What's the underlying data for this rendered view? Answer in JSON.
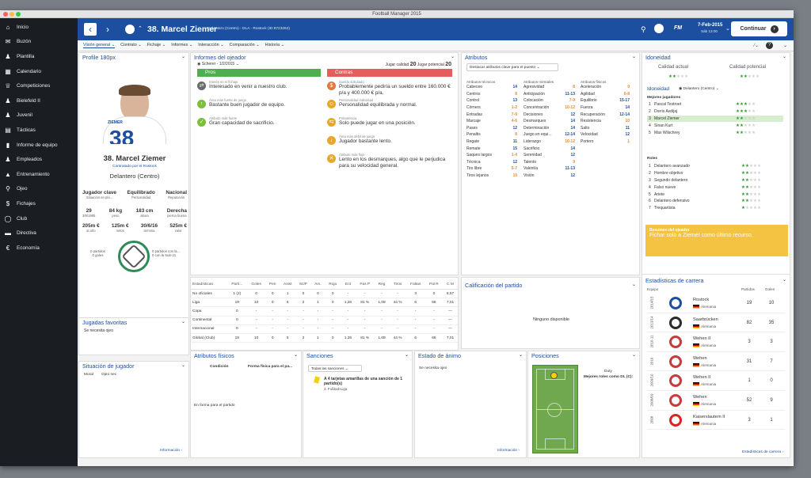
{
  "window_title": "Football Manager 2015",
  "sidebar": [
    {
      "label": "Inicio",
      "icon": "home-icon",
      "g": "⌂"
    },
    {
      "label": "Buzón",
      "icon": "inbox-icon",
      "g": "✉"
    },
    {
      "label": "Plantilla",
      "icon": "squad-icon",
      "g": "♟"
    },
    {
      "label": "Calendario",
      "icon": "calendar-icon",
      "g": "▦"
    },
    {
      "label": "Competiciones",
      "icon": "trophy-icon",
      "g": "♕"
    },
    {
      "label": "Bielefeld II",
      "icon": "team-icon",
      "g": "♟"
    },
    {
      "label": "Juvenil",
      "icon": "youth-icon",
      "g": "♟"
    },
    {
      "label": "Tácticas",
      "icon": "tactics-icon",
      "g": "▤"
    },
    {
      "label": "Informe de equipo",
      "icon": "report-icon",
      "g": "▮"
    },
    {
      "label": "Empleados",
      "icon": "staff-icon",
      "g": "♟"
    },
    {
      "label": "Entrenamiento",
      "icon": "training-icon",
      "g": "▲"
    },
    {
      "label": "Ojeo",
      "icon": "scouting-icon",
      "g": "⚲"
    },
    {
      "label": "Fichajes",
      "icon": "transfers-icon",
      "g": "$"
    },
    {
      "label": "Club",
      "icon": "club-icon",
      "g": "◯"
    },
    {
      "label": "Directiva",
      "icon": "board-icon",
      "g": "▬"
    },
    {
      "label": "Economía",
      "icon": "finance-icon",
      "g": "€"
    }
  ],
  "topbar": {
    "number": "38",
    "name": "38. Marcel Ziemer",
    "subtitle": "Delantero (Centro) - DLA - Rostock (ID:8723262)",
    "fm": "FM",
    "date": "7-Feb-2015",
    "day": "Sáb 13:00",
    "continue": "Continuar"
  },
  "subnav": [
    "Visión general",
    "Contrato",
    "Fichaje",
    "Informes",
    "Interacción",
    "Comparación",
    "Historia"
  ],
  "profile": {
    "title": "Profile 180px",
    "name": "38. Marcel Ziemer",
    "hired": "Contratado por el Rostock",
    "position": "Delantero (Centro)",
    "traits": [
      {
        "v": "Jugador clave",
        "l": "Situación en pla..."
      },
      {
        "v": "Equilibrado",
        "l": "Personalidad"
      },
      {
        "v": "Nacional",
        "l": "Reputación"
      }
    ],
    "facts": [
      {
        "v": "29",
        "l": "3/8/1985"
      },
      {
        "v": "84 kg",
        "l": "peso"
      },
      {
        "v": "183 cm",
        "l": "altura"
      },
      {
        "v": "Derecha",
        "l": "pierna buena"
      }
    ],
    "money": [
      {
        "v": "205m €",
        "l": "al año"
      },
      {
        "v": "125m €",
        "l": "netos"
      },
      {
        "v": "30/6/16",
        "l": "termina"
      },
      {
        "v": "525m €",
        "l": "valor"
      }
    ],
    "intl_left": "0 partidos\n0 goles",
    "intl_right": "0 partidos con la...\n0 con la Sub-21",
    "badge": "ZIEMER"
  },
  "favs": {
    "title": "Jugadas favoritas",
    "text": "Se necesita ojeo"
  },
  "situation": {
    "title": "Situación de jugador",
    "a": "Moral",
    "b": "Ojeo nec",
    "info": "Información"
  },
  "scout": {
    "title": "Informes del ojeador",
    "who": "Scherer - 1/2/2015",
    "cur_label": "Jugar calidad",
    "cur": "20",
    "pot_label": "Jugar potencial",
    "pot": "20",
    "pros": "Pros",
    "cons": "Contras",
    "pros_items": [
      {
        "h": "Interés en el fichaje",
        "t": "Interesado en venir a nuestro club.",
        "c": "#6a6a6a",
        "g": "⇄"
      },
      {
        "h": "Área más fuerte de juego",
        "t": "Bastante buen jugador de equipo.",
        "c": "#7bbf3a",
        "g": "↑"
      },
      {
        "h": "Atributo más fuerte",
        "t": "Gran capacidad de sacrificio.",
        "c": "#7bbf3a",
        "g": "✓"
      }
    ],
    "cons_items": [
      {
        "h": "Sueldo solicitado",
        "t": "Probablemente pediría un sueldo entre 160.000 € p/a y 400.000 € p/a.",
        "c": "#e07a3c",
        "g": "$"
      },
      {
        "h": "Personalidad individual",
        "t": "Personalidad equilibrada y normal.",
        "c": "#e8a72a",
        "g": "☺"
      },
      {
        "h": "Polivalencia",
        "t": "Solo puede jugar en una posición.",
        "c": "#e8a72a",
        "g": "⇆"
      },
      {
        "h": "Área más débil de juego",
        "t": "Jugador bastante lento.",
        "c": "#e8a72a",
        "g": "↓"
      },
      {
        "h": "Atributo más flojo",
        "t": "Lento en los desmarques, algo que le perjudica para su velocidad general.",
        "c": "#e8a72a",
        "g": "✕"
      }
    ]
  },
  "attributes": {
    "title": "Atributos",
    "highlight": "Destacar atributos clave para el puesto",
    "tech_h": "Atributos técnicos",
    "ment_h": "Atributos mentales",
    "phys_h": "Atributos físicos",
    "tech": [
      [
        "Cabeceo",
        "14",
        "b"
      ],
      [
        "Centros",
        "8",
        "o"
      ],
      [
        "Control",
        "13",
        "b"
      ],
      [
        "Córners",
        "1-2",
        "o"
      ],
      [
        "Entradas",
        "7-9",
        "o"
      ],
      [
        "Marcaje",
        "4-6",
        "o"
      ],
      [
        "Pases",
        "12",
        "b"
      ],
      [
        "Penaltis",
        "8",
        "o"
      ],
      [
        "Regate",
        "11",
        "b"
      ],
      [
        "Remate",
        "15",
        "b"
      ],
      [
        "Saques largos",
        "1-4",
        "o"
      ],
      [
        "Técnica",
        "12",
        "b"
      ],
      [
        "Tiro libre",
        "5-7",
        "o"
      ],
      [
        "Tiros lejanos",
        "10",
        "o"
      ]
    ],
    "ment": [
      [
        "Agresividad",
        "8",
        "o"
      ],
      [
        "Anticipación",
        "11-13",
        "b"
      ],
      [
        "Colocación",
        "7-9",
        "o"
      ],
      [
        "Concentración",
        "10-12",
        "o"
      ],
      [
        "Decisiones",
        "12",
        "b"
      ],
      [
        "Desmarques",
        "14",
        "b"
      ],
      [
        "Determinación",
        "14",
        "b"
      ],
      [
        "Juego en equi...",
        "12-14",
        "b"
      ],
      [
        "Liderazgo",
        "10-12",
        "o"
      ],
      [
        "Sacrificio",
        "14",
        "b"
      ],
      [
        "Serenidad",
        "12",
        "b"
      ],
      [
        "Talento",
        "9",
        "o"
      ],
      [
        "Valentía",
        "11-13",
        "b"
      ],
      [
        "Visión",
        "12",
        "b"
      ]
    ],
    "phys": [
      [
        "Aceleración",
        "9",
        "o"
      ],
      [
        "Agilidad",
        "6-8",
        "o"
      ],
      [
        "Equilibrio",
        "15-17",
        "b"
      ],
      [
        "Fuerza",
        "14",
        "b"
      ],
      [
        "Recuperación",
        "12-14",
        "b"
      ],
      [
        "Resistencia",
        "10",
        "o"
      ],
      [
        "Salto",
        "11",
        "b"
      ],
      [
        "Velocidad",
        "12",
        "b"
      ],
      [
        "Portero",
        "1",
        "o"
      ]
    ]
  },
  "ideal": {
    "title": "Idoneidad",
    "cur": "Calidad actual",
    "pot": "Calidad potencial",
    "cur_stars": 2,
    "pot_stars": 2,
    "sub": "Idoneidad",
    "pos": "Delantero (Centro)",
    "best": "Mejores jugadores",
    "players": [
      [
        "1",
        "Pascal Testroet",
        3
      ],
      [
        "2",
        "Dorris Avdijaj",
        3
      ],
      [
        "3",
        "Marcel Ziemer",
        2
      ],
      [
        "4",
        "Sinan Kurt",
        2
      ],
      [
        "5",
        "Max Wilschrey",
        2
      ]
    ],
    "roles_h": "Roles",
    "roles": [
      [
        "1",
        "Delantero avanzado",
        2
      ],
      [
        "2",
        "Hombre objetivo",
        2
      ],
      [
        "3",
        "Segundo delantero",
        2
      ],
      [
        "4",
        "Falso nueve",
        2
      ],
      [
        "5",
        "Ariete",
        2
      ],
      [
        "6",
        "Delantero defensivo",
        2
      ],
      [
        "7",
        "Trequartista",
        1
      ]
    ],
    "summary_h": "Resumen del ojeador",
    "summary": "Fichar solo a Ziemer como último recurso."
  },
  "stats": {
    "cols": [
      "Estadísticas",
      "Parti...",
      "Goles",
      "Pen",
      "Asist",
      "MJP",
      "Am.",
      "Roja",
      "Ent",
      "Pas P",
      "Reg",
      "Tiros",
      "Faltas",
      "Pal R",
      "C M"
    ],
    "rows": [
      [
        "No oficiales",
        "1 (2)",
        "0",
        "0",
        "1",
        "0",
        "0",
        "0",
        "-",
        "-",
        "-",
        "-",
        "3",
        "0",
        "6,57"
      ],
      [
        "Liga",
        "19",
        "10",
        "0",
        "5",
        "2",
        "1",
        "0",
        "1,26",
        "81 %",
        "1,08",
        "44 %",
        "6",
        "66",
        "7,01"
      ],
      [
        "Copa",
        "0",
        "-",
        "-",
        "-",
        "-",
        "-",
        "-",
        "-",
        "-",
        "-",
        "-",
        "-",
        "-",
        "—"
      ],
      [
        "Continental",
        "0",
        "-",
        "-",
        "-",
        "-",
        "-",
        "-",
        "-",
        "-",
        "-",
        "-",
        "-",
        "-",
        "—"
      ],
      [
        "Internacional",
        "0",
        "-",
        "-",
        "-",
        "-",
        "-",
        "-",
        "-",
        "-",
        "-",
        "-",
        "-",
        "-",
        "—"
      ],
      [
        "Global (Club)",
        "19",
        "10",
        "0",
        "5",
        "2",
        "1",
        "0",
        "1,26",
        "81 %",
        "1,08",
        "44 %",
        "6",
        "66",
        "7,01"
      ]
    ]
  },
  "rating": {
    "title": "Calificación del partido",
    "text": "Ninguno disponible"
  },
  "career": {
    "title": "Estadísticas de carrera",
    "team_h": "Equipo",
    "apps_h": "Partidos",
    "goals_h": "Goles",
    "link": "Estadísticas de carrera",
    "rows": [
      [
        "2014/15",
        "Rostock",
        "Alemania",
        "19",
        "10",
        "#1c4fa0"
      ],
      [
        "2013/14",
        "Saarbrücken",
        "Alemania",
        "82",
        "35",
        "#2a2a2a"
      ],
      [
        "2010-11",
        "Wehen II",
        "Alemania",
        "3",
        "3",
        "#c43c3c"
      ],
      [
        "2010",
        "Wehen",
        "Alemania",
        "31",
        "7",
        "#c43c3c"
      ],
      [
        "2009/10",
        "Wehen II",
        "Alemania",
        "1",
        "0",
        "#c43c3c"
      ],
      [
        "2008/09",
        "Wehen",
        "Alemania",
        "52",
        "9",
        "#c43c3c"
      ],
      [
        "2008",
        "Kaiserslautern II",
        "Alemania",
        "3",
        "1",
        "#d22"
      ]
    ]
  },
  "physical": {
    "title": "Atributos físicos",
    "c1": "Condición",
    "c2": "Forma física para el pa...",
    "note": "En forma para el partido"
  },
  "sanctions": {
    "title": "Sanciones",
    "filter": "Todas las sanciones",
    "t1": "A 4 tarjetas amarillas de una sanción de 1 partido(s)",
    "t2": "3. Fußball-Liga"
  },
  "mood": {
    "title": "Estado de ánimo",
    "text": "Se necesita ojeo",
    "info": "Información"
  },
  "positions": {
    "title": "Posiciones",
    "duty": "Duty",
    "best": "Mejores roles como DL (C):"
  }
}
